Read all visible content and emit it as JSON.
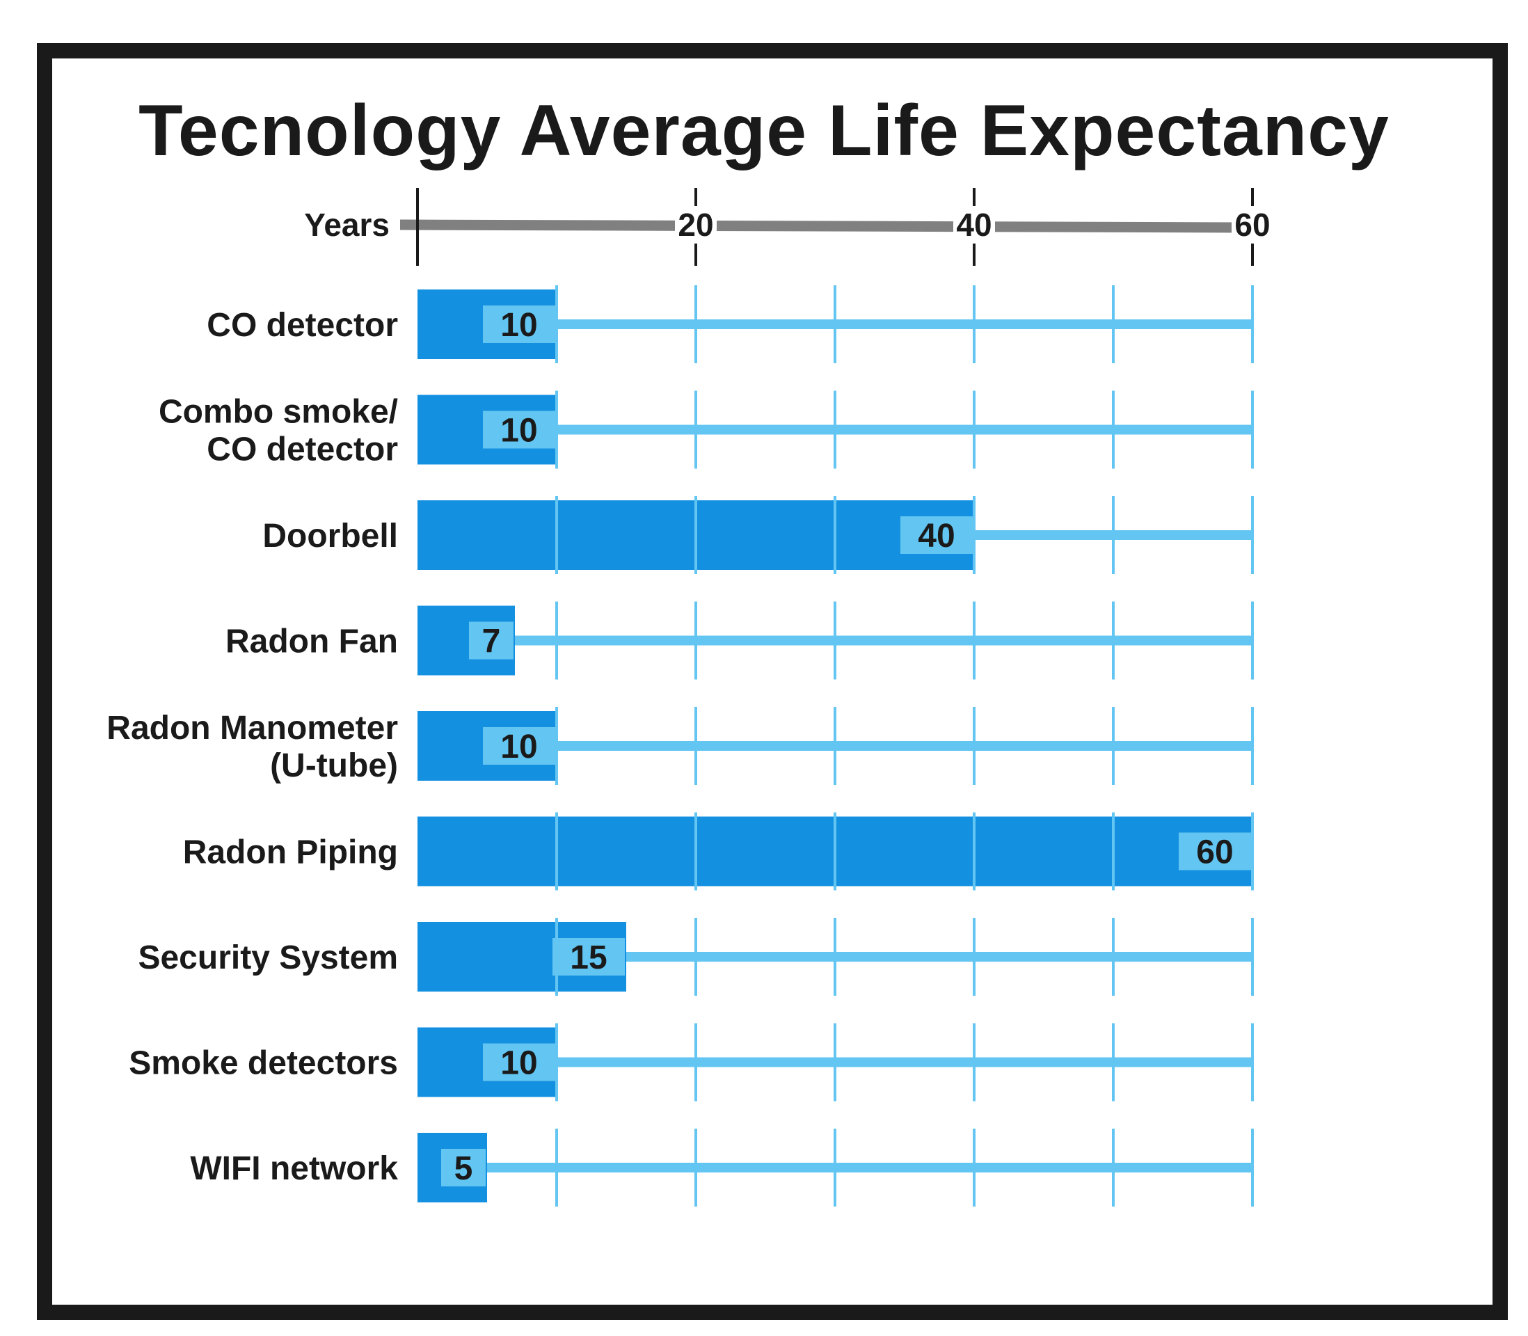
{
  "colors": {
    "bar": "#1490e0",
    "track": "#63c5f2",
    "axis": "#808080",
    "text": "#1a1a1a",
    "frame": "#1a1a1a"
  },
  "chart_data": {
    "type": "bar",
    "orientation": "horizontal",
    "title": "Tecnology Average Life Expectancy",
    "xlabel": "Years",
    "ylabel": "",
    "xlim": [
      0,
      60
    ],
    "ticks": [
      20,
      40,
      60
    ],
    "grid_values": [
      10,
      20,
      30,
      40,
      50,
      60
    ],
    "grid": true,
    "categories": [
      [
        "CO detector"
      ],
      [
        "Combo smoke/",
        "CO detector"
      ],
      [
        "Doorbell"
      ],
      [
        "Radon Fan"
      ],
      [
        "Radon Manometer",
        "(U-tube)"
      ],
      [
        "Radon Piping"
      ],
      [
        "Security System"
      ],
      [
        "Smoke detectors"
      ],
      [
        "WIFI network"
      ]
    ],
    "values": [
      10,
      10,
      40,
      7,
      10,
      60,
      15,
      10,
      5
    ]
  }
}
